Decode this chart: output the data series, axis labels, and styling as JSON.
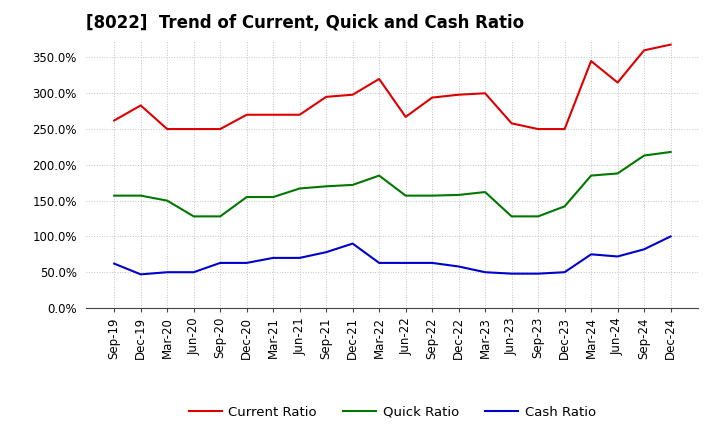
{
  "title": "[8022]  Trend of Current, Quick and Cash Ratio",
  "x_labels": [
    "Sep-19",
    "Dec-19",
    "Mar-20",
    "Jun-20",
    "Sep-20",
    "Dec-20",
    "Mar-21",
    "Jun-21",
    "Sep-21",
    "Dec-21",
    "Mar-22",
    "Jun-22",
    "Sep-22",
    "Dec-22",
    "Mar-23",
    "Jun-23",
    "Sep-23",
    "Dec-23",
    "Mar-24",
    "Jun-24",
    "Sep-24",
    "Dec-24"
  ],
  "current_ratio": [
    262,
    283,
    250,
    250,
    250,
    270,
    270,
    270,
    295,
    298,
    320,
    267,
    294,
    298,
    300,
    258,
    250,
    250,
    345,
    315,
    360,
    368
  ],
  "quick_ratio": [
    157,
    157,
    150,
    128,
    128,
    155,
    155,
    167,
    170,
    172,
    185,
    157,
    157,
    158,
    162,
    128,
    128,
    142,
    185,
    188,
    213,
    218
  ],
  "cash_ratio": [
    62,
    47,
    50,
    50,
    63,
    63,
    70,
    70,
    78,
    90,
    63,
    63,
    63,
    58,
    50,
    48,
    48,
    50,
    75,
    72,
    82,
    100
  ],
  "ylim": [
    0,
    375
  ],
  "yticks": [
    0,
    50,
    100,
    150,
    200,
    250,
    300,
    350
  ],
  "current_color": "#dd0000",
  "quick_color": "#007700",
  "cash_color": "#0000cc",
  "bg_color": "#ffffff",
  "grid_color": "#bbbbbb",
  "title_fontsize": 12,
  "axis_fontsize": 8.5,
  "legend_fontsize": 9.5
}
